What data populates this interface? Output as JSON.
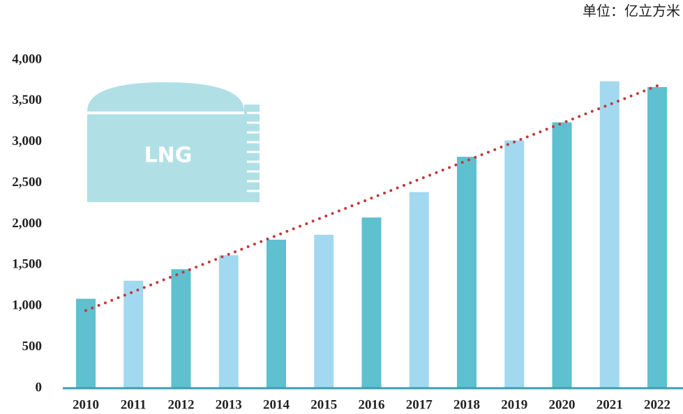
{
  "chart_data": {
    "type": "bar",
    "unit_label": "单位：亿立方米",
    "illustration_label": "LNG",
    "categories": [
      "2010",
      "2011",
      "2012",
      "2013",
      "2014",
      "2015",
      "2016",
      "2017",
      "2018",
      "2019",
      "2020",
      "2021",
      "2022"
    ],
    "values": [
      1090,
      1310,
      1450,
      1620,
      1810,
      1870,
      2080,
      2390,
      2820,
      3020,
      3240,
      3740,
      3670
    ],
    "colors": [
      "#5fc0cf",
      "#a2d8f0",
      "#5fc0cf",
      "#a2d8f0",
      "#5fc0cf",
      "#a2d8f0",
      "#5fc0cf",
      "#a2d8f0",
      "#5fc0cf",
      "#a2d8f0",
      "#5fc0cf",
      "#a2d8f0",
      "#5fc0cf"
    ],
    "ylim": [
      0,
      4000
    ],
    "yticks": [
      0,
      500,
      {
        "value": 1000,
        "label": "1,000"
      },
      {
        "value": 1500,
        "label": "1,500"
      },
      {
        "value": 2000,
        "label": "2,000"
      },
      {
        "value": 2500,
        "label": "2,500"
      },
      {
        "value": 3000,
        "label": "3,000"
      },
      {
        "value": 3500,
        "label": "3,500"
      },
      {
        "value": 4000,
        "label": "4,000"
      }
    ],
    "trendline": true,
    "trendline_color": "#c0393b",
    "axis_color": "#3a9fb0"
  }
}
